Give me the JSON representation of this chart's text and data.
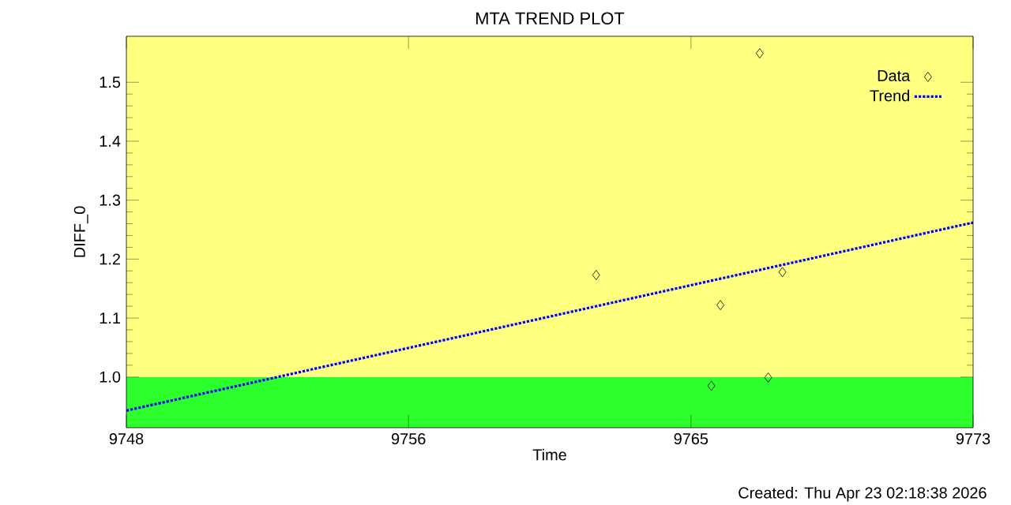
{
  "chart_data": {
    "type": "scatter",
    "title": "MTA TREND PLOT",
    "xlabel": "Time",
    "ylabel": "DIFF_0",
    "xlim": [
      9748,
      9773
    ],
    "ylim": [
      0.914,
      1.578
    ],
    "xticks": [
      9748,
      {
        "value": 9756.33,
        "label": "9756"
      },
      {
        "value": 9764.67,
        "label": "9765"
      },
      9773
    ],
    "yticks": [
      {
        "value": 1.0,
        "label": "1.0"
      },
      1.1,
      1.2,
      1.3,
      1.4,
      1.5
    ],
    "bands": [
      {
        "axis": "y",
        "from": 0.914,
        "to": 1.0,
        "color": "#2dff2d"
      },
      {
        "axis": "y",
        "from": 1.0,
        "to": 1.578,
        "color": "#ffff80"
      }
    ],
    "series": [
      {
        "name": "Data",
        "color": "#000000",
        "marker": "diamond",
        "x": [
          9761.87,
          9766.7,
          9765.54,
          9765.27,
          9766.95,
          9767.37
        ],
        "values": [
          1.173,
          1.549,
          1.122,
          0.985,
          0.999,
          1.178
        ]
      },
      {
        "name": "Trend",
        "type": "line",
        "color": "#0000ff",
        "line_style": "dotted",
        "x": [
          9748,
          9773
        ],
        "values": [
          0.943,
          1.262
        ]
      }
    ],
    "legend": "top right",
    "annotations": [
      "Created: Thu Apr 23 02:18:38 2026"
    ]
  }
}
